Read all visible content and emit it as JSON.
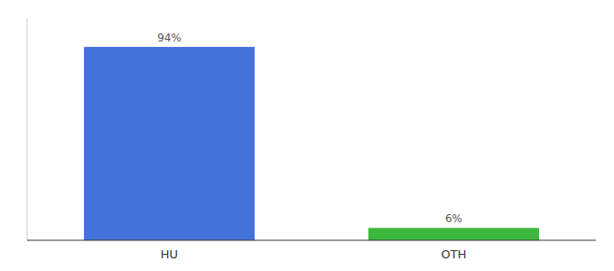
{
  "chart_data": {
    "type": "bar",
    "categories": [
      "HU",
      "OTH"
    ],
    "values": [
      94,
      6
    ],
    "value_labels": [
      "94%",
      "6%"
    ],
    "colors": [
      "#4472db",
      "#3cb83c"
    ],
    "ylim": [
      0,
      108
    ],
    "data_labels": true,
    "tick_labels": "x"
  }
}
